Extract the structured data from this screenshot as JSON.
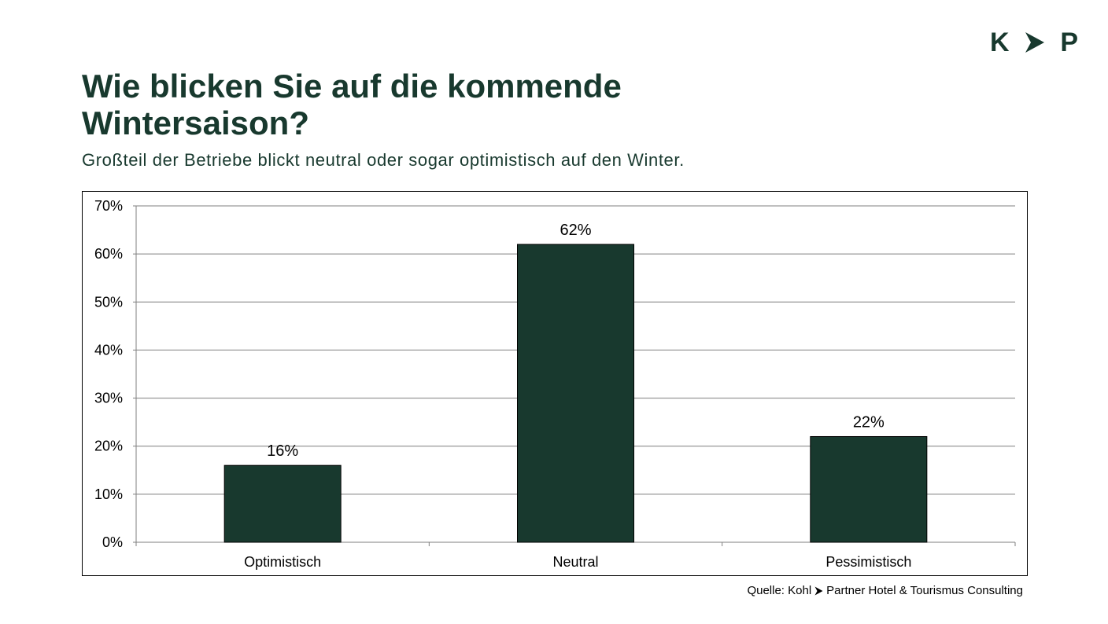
{
  "logo": {
    "left": "K",
    "right": "P",
    "arrow_icon": "chevron-right-icon",
    "color": "#18392e"
  },
  "heading": {
    "title": "Wie blicken Sie auf die kommende Wintersaison?",
    "subtitle": "Großteil der Betriebe blickt neutral oder sogar optimistisch auf den Winter."
  },
  "source": {
    "prefix": "Quelle: Kohl",
    "suffix": "Partner Hotel & Tourismus Consulting",
    "arrow_icon": "chevron-right-icon"
  },
  "chart_data": {
    "type": "bar",
    "title": "",
    "xlabel": "",
    "ylabel": "",
    "categories": [
      "Optimistisch",
      "Neutral",
      "Pessimistisch"
    ],
    "values": [
      16,
      62,
      22
    ],
    "data_labels": [
      "16%",
      "62%",
      "22%"
    ],
    "ylim": [
      0,
      70
    ],
    "y_ticks": [
      0,
      10,
      20,
      30,
      40,
      50,
      60,
      70
    ],
    "y_tick_labels": [
      "0%",
      "10%",
      "20%",
      "30%",
      "40%",
      "50%",
      "60%",
      "70%"
    ],
    "grid": true,
    "legend": "none",
    "bar_color": "#18392e"
  }
}
